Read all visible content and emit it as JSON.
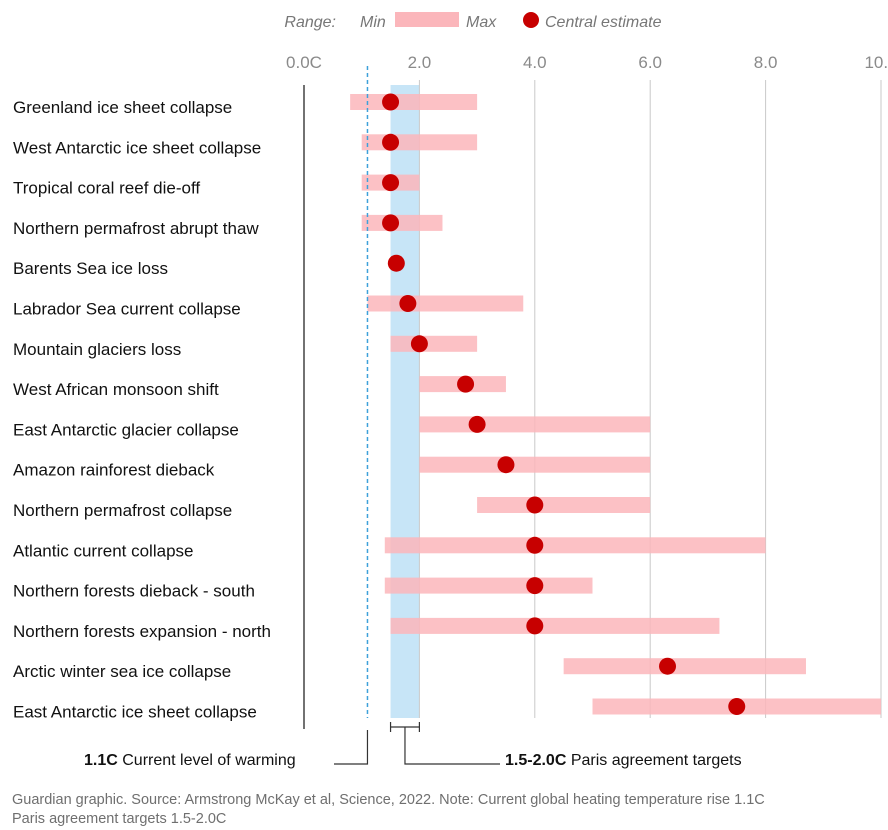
{
  "chart_data": {
    "type": "range-dot",
    "title": "",
    "xlabel": "",
    "ylabel": "",
    "xlim": [
      0,
      10
    ],
    "x_ticks": [
      0,
      2,
      4,
      6,
      8,
      10
    ],
    "x_tick_labels": [
      "0.0C",
      "2.0",
      "4.0",
      "6.0",
      "8.0",
      "10.0"
    ],
    "grid": "vertical",
    "legend": {
      "position": "top",
      "range_label": "Range:",
      "min_label": "Min",
      "max_label": "Max",
      "central_label": "Central estimate"
    },
    "colors": {
      "range": "#fbb6bb",
      "dot": "#c70000",
      "band": "#c7e5f7",
      "current_line": "#3ea1da"
    },
    "categories": [
      "Greenland ice sheet collapse",
      "West Antarctic ice sheet collapse",
      "Tropical coral reef die-off",
      "Northern permafrost abrupt thaw",
      "Barents Sea ice loss",
      "Labrador Sea current collapse",
      "Mountain glaciers loss",
      "West African monsoon shift",
      "East Antarctic glacier collapse",
      "Amazon rainforest dieback",
      "Northern permafrost collapse",
      "Atlantic current collapse",
      "Northern forests dieback - south",
      "Northern forests expansion - north",
      "Arctic winter sea ice collapse",
      "East Antarctic ice sheet collapse"
    ],
    "min": [
      0.8,
      1.0,
      1.0,
      1.0,
      null,
      1.1,
      1.5,
      2.0,
      2.0,
      2.0,
      3.0,
      1.4,
      1.4,
      1.5,
      4.5,
      5.0
    ],
    "central": [
      1.5,
      1.5,
      1.5,
      1.5,
      1.6,
      1.8,
      2.0,
      2.8,
      3.0,
      3.5,
      4.0,
      4.0,
      4.0,
      4.0,
      6.3,
      7.5
    ],
    "max": [
      3.0,
      3.0,
      2.0,
      2.4,
      null,
      3.8,
      3.0,
      3.5,
      6.0,
      6.0,
      6.0,
      8.0,
      5.0,
      7.2,
      8.7,
      10.0
    ],
    "annotations": {
      "current_warming": {
        "value": 1.1,
        "value_label": "1.1C",
        "text": "Current level of warming"
      },
      "paris_targets": {
        "range": [
          1.5,
          2.0
        ],
        "value_label": "1.5-2.0C",
        "text": "Paris agreement targets"
      }
    }
  },
  "footer": {
    "line1": "Guardian graphic. Source: Armstrong McKay et al, Science, 2022. Note: Current global heating temperature rise 1.1C",
    "line2": "Paris agreement targets 1.5-2.0C"
  }
}
